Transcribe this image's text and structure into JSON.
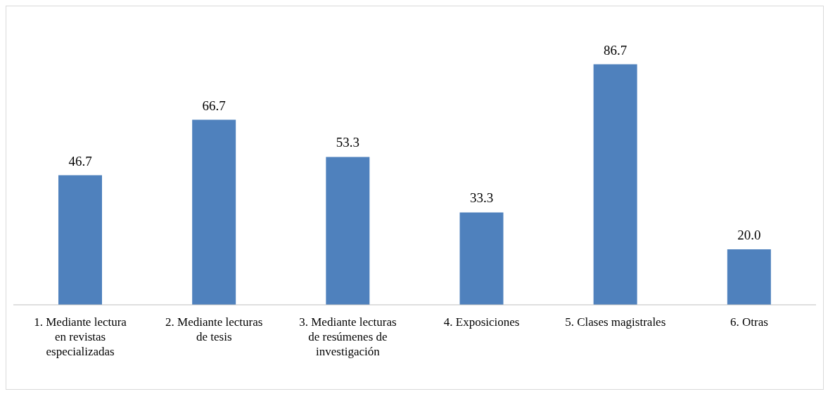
{
  "chart_data": {
    "type": "bar",
    "categories": [
      "1. Mediante lectura en revistas especializadas",
      "2. Mediante lecturas de tesis",
      "3. Mediante lecturas de resúmenes de investigación",
      "4. Exposiciones",
      "5. Clases magistrales",
      "6. Otras"
    ],
    "values": [
      46.7,
      66.7,
      53.3,
      33.3,
      86.7,
      20.0
    ],
    "value_labels": [
      "46.7",
      "66.7",
      "53.3",
      "33.3",
      "86.7",
      "20.0"
    ],
    "color": "#4f81bd",
    "grid": false,
    "legend": false
  }
}
